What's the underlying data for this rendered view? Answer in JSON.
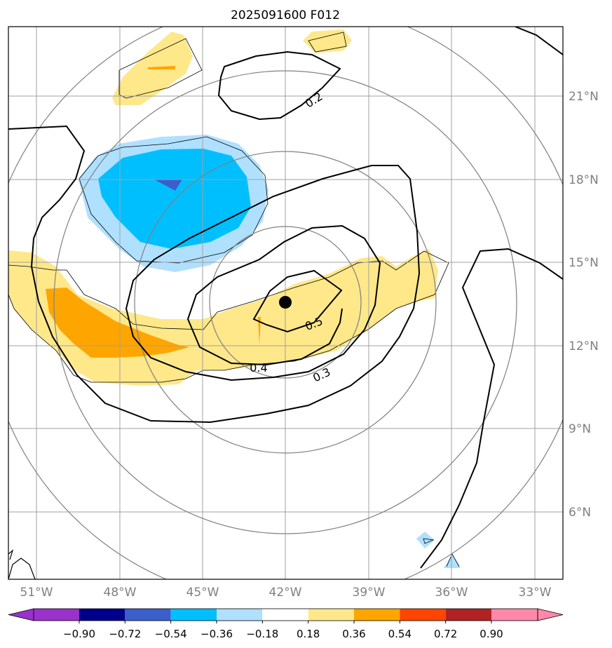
{
  "title": "2025091600 F012",
  "lon_labels": [
    "51°W",
    "48°W",
    "45°W",
    "42°W",
    "39°W",
    "36°W",
    "33°W"
  ],
  "lat_labels": [
    "21°N",
    "18°N",
    "15°N",
    "12°N",
    "9°N",
    "6°N"
  ],
  "contour_labels": [
    "0.2",
    "0.3",
    "0.4",
    "0.5"
  ],
  "colorbar": {
    "ticks": [
      "−0.90",
      "−0.72",
      "−0.54",
      "−0.36",
      "−0.18",
      "0.18",
      "0.36",
      "0.54",
      "0.72",
      "0.90"
    ],
    "colors": [
      "#9932CC",
      "#00008B",
      "#3A5FCD",
      "#00BFFF",
      "#B0E0FF",
      "#FFFFFF",
      "#FFE88A",
      "#FFA500",
      "#FF4500",
      "#B22222",
      "#FF88AA"
    ]
  },
  "colors": {
    "contour": "#000000",
    "grid": "#a0a0a0",
    "ring": "#808080",
    "center_marker": "#000000"
  }
}
